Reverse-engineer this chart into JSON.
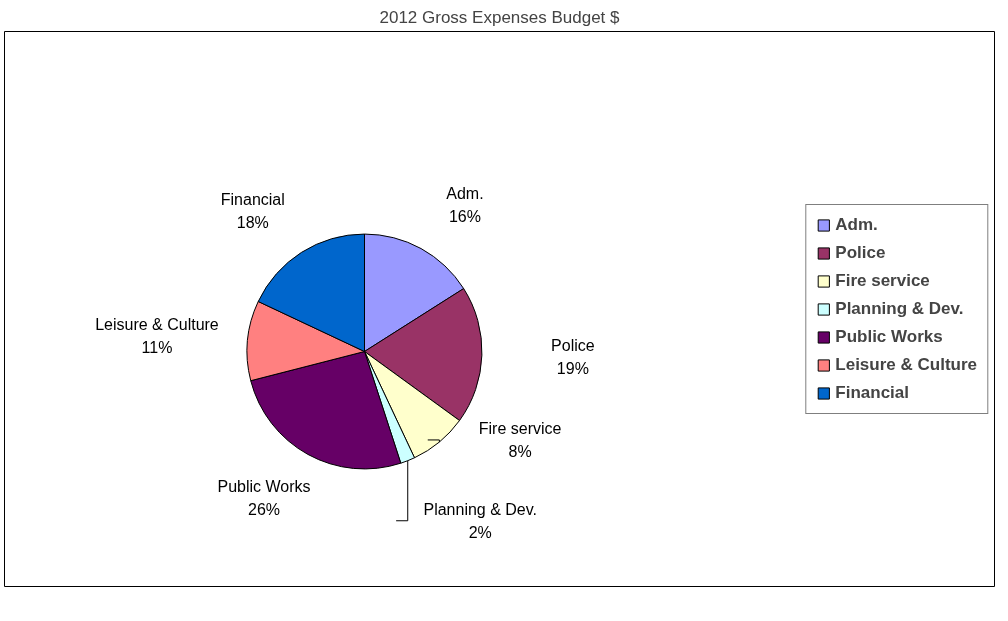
{
  "chart_data": {
    "type": "pie",
    "title": "2012 Gross Expenses Budget $",
    "categories": [
      "Adm.",
      "Police",
      "Fire service",
      "Planning & Dev.",
      "Public Works",
      "Leisure & Culture",
      "Financial"
    ],
    "values": [
      16,
      19,
      8,
      2,
      26,
      11,
      18
    ],
    "value_labels": [
      "16%",
      "19%",
      "8%",
      "2%",
      "26%",
      "11%",
      "18%"
    ],
    "colors": [
      "#9999ff",
      "#993366",
      "#ffffcc",
      "#ccffff",
      "#660066",
      "#ff8080",
      "#0066cc"
    ],
    "legend": "right"
  }
}
